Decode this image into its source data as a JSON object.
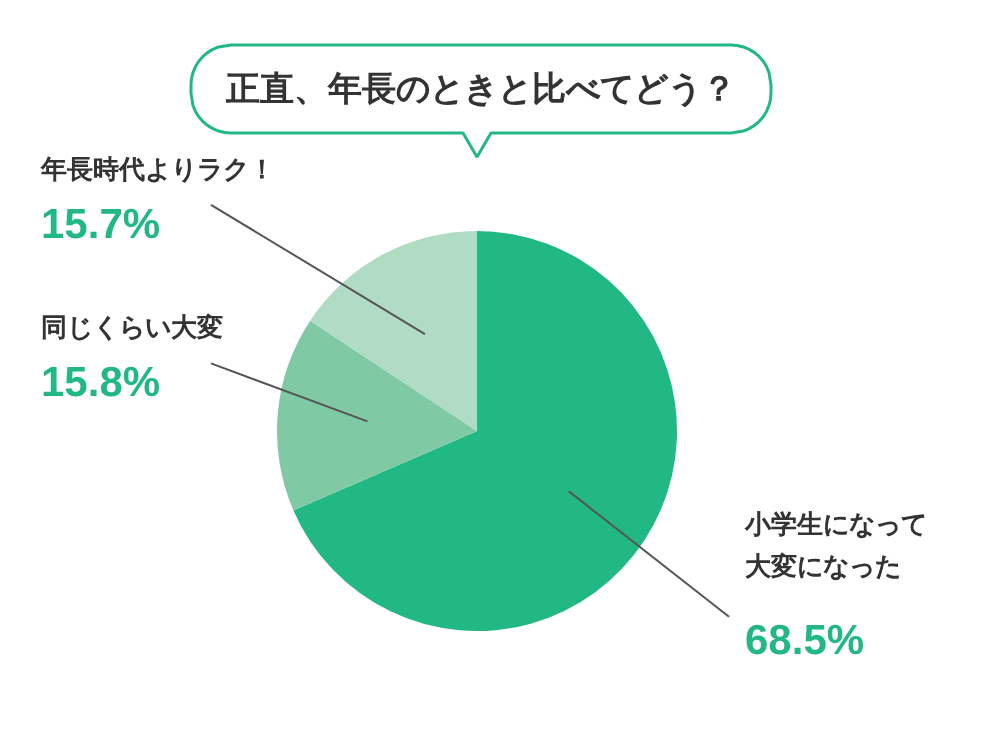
{
  "chart_data": {
    "type": "pie",
    "title": "正直、年長のときと比べてどう？",
    "categories": [
      "小学生になって大変になった",
      "同じくらい大変",
      "年長時代よりラク！"
    ],
    "values": [
      68.5,
      15.8,
      15.7
    ],
    "value_labels": [
      "68.5%",
      "15.8%",
      "15.7%"
    ],
    "colors": [
      "#22b884",
      "#80c9a5",
      "#b0dbc4"
    ]
  }
}
